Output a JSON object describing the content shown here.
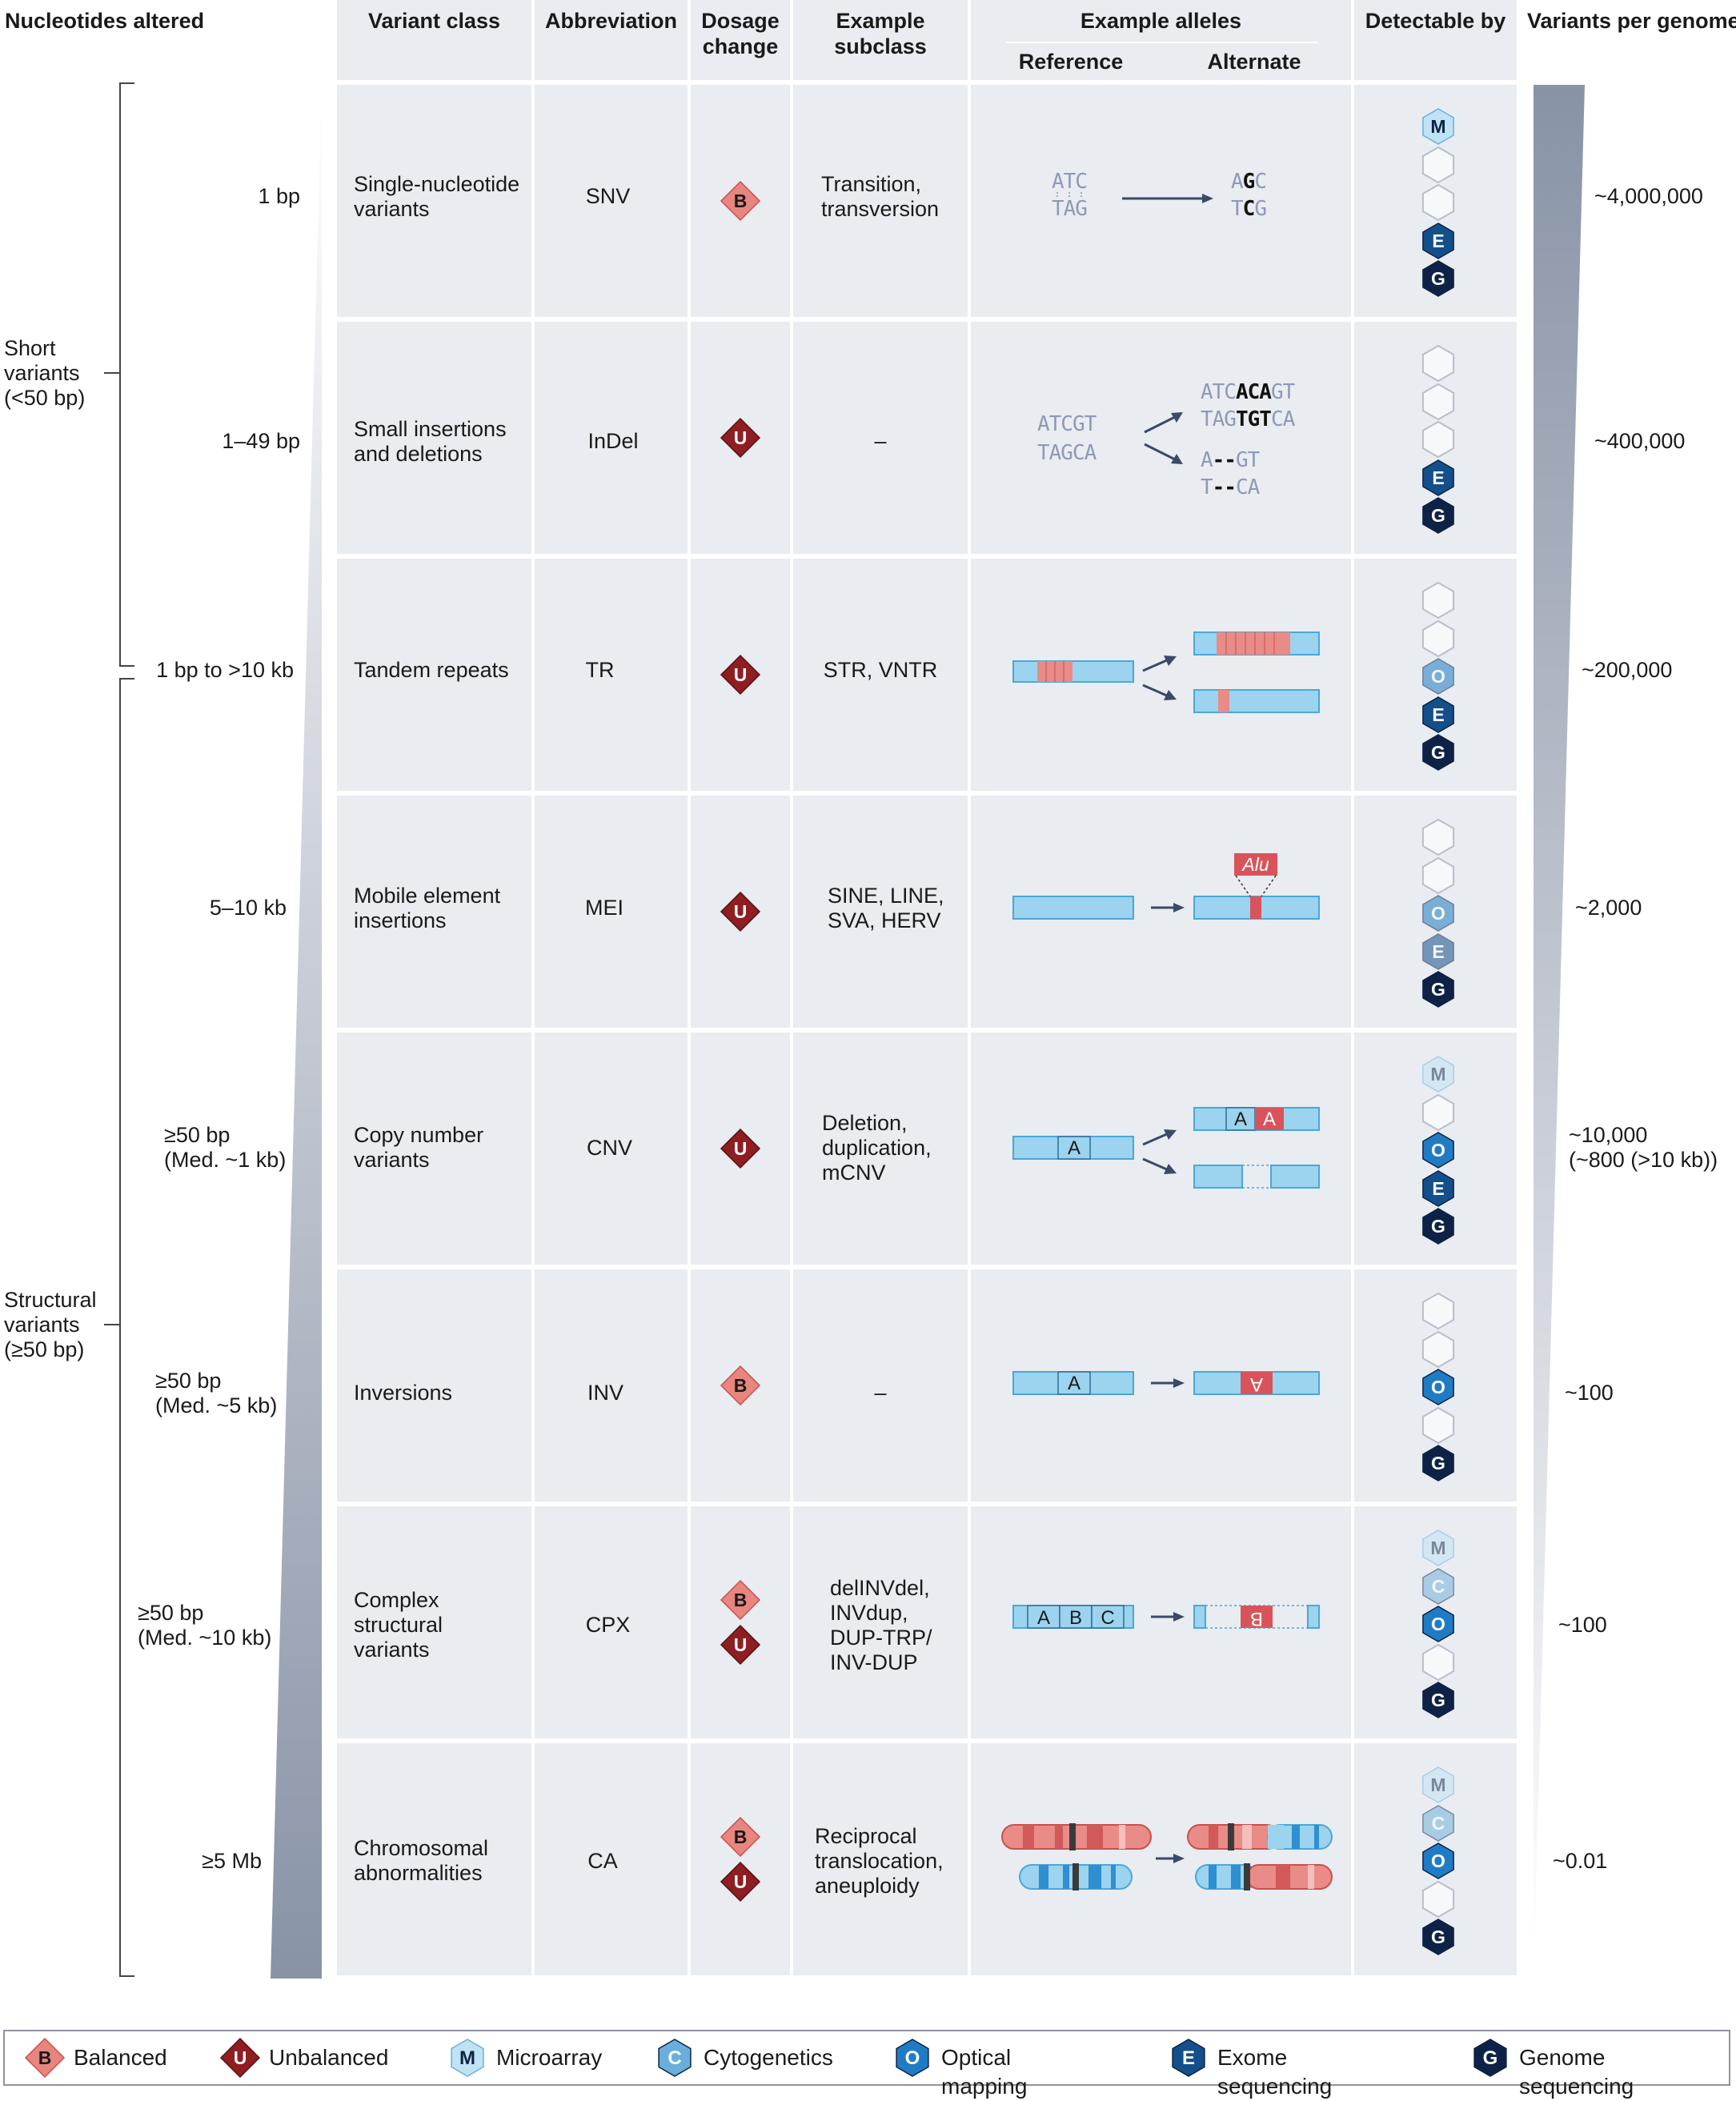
{
  "headers": {
    "nucleotides": "Nucleotides altered",
    "variant_class": "Variant class",
    "abbreviation": "Abbreviation",
    "dosage": "Dosage\nchange",
    "subclass": "Example\nsubclass",
    "alleles": "Example alleles",
    "reference": "Reference",
    "alternate": "Alternate",
    "detectable": "Detectable by",
    "per_genome": "Variants per genome"
  },
  "groups": {
    "short": "Short\nvariants\n(<50 bp)",
    "structural": "Structural\nvariants\n(≥50 bp)"
  },
  "rows": [
    {
      "size": "1 bp",
      "class": "Single-nucleotide\nvariants",
      "abbr": "SNV",
      "dosage": [
        "B"
      ],
      "subclass": "Transition,\ntransversion",
      "methods": [
        "M",
        "",
        "",
        "E",
        "G"
      ],
      "count": "~4,000,000"
    },
    {
      "size": "1–49 bp",
      "class": "Small insertions\nand deletions",
      "abbr": "InDel",
      "dosage": [
        "U"
      ],
      "subclass": "–",
      "methods": [
        "",
        "",
        "",
        "E",
        "G"
      ],
      "count": "~400,000"
    },
    {
      "size": "1 bp to >10 kb",
      "class": "Tandem repeats",
      "abbr": "TR",
      "dosage": [
        "U"
      ],
      "subclass": "STR, VNTR",
      "methods": [
        "",
        "",
        "O",
        "E",
        "G"
      ],
      "count": "~200,000"
    },
    {
      "size": "5–10 kb",
      "class": "Mobile element\ninsertions",
      "abbr": "MEI",
      "dosage": [
        "U"
      ],
      "subclass": "SINE, LINE,\nSVA, HERV",
      "methods": [
        "",
        "",
        "O",
        "E",
        "G"
      ],
      "count": "~2,000"
    },
    {
      "size": "≥50 bp\n(Med. ~1 kb)",
      "class": "Copy number\nvariants",
      "abbr": "CNV",
      "dosage": [
        "U"
      ],
      "subclass": "Deletion,\nduplication,\nmCNV",
      "methods": [
        "M",
        "",
        "O",
        "E",
        "G"
      ],
      "count": "~10,000\n(~800 (>10 kb))"
    },
    {
      "size": "≥50 bp\n(Med. ~5 kb)",
      "class": "Inversions",
      "abbr": "INV",
      "dosage": [
        "B"
      ],
      "subclass": "–",
      "methods": [
        "",
        "",
        "O",
        "",
        "G"
      ],
      "count": "~100"
    },
    {
      "size": "≥50 bp\n(Med. ~10 kb)",
      "class": "Complex\nstructural\nvariants",
      "abbr": "CPX",
      "dosage": [
        "B",
        "U"
      ],
      "subclass": "delINVdel,\nINVdup,\nDUP-TRP/\nINV-DUP",
      "methods": [
        "M",
        "C",
        "O",
        "",
        "G"
      ],
      "count": "~100"
    },
    {
      "size": "≥5 Mb",
      "class": "Chromosomal\nabnormalities",
      "abbr": "CA",
      "dosage": [
        "B",
        "U"
      ],
      "subclass": "Reciprocal\ntranslocation,\naneuploidy",
      "methods": [
        "M",
        "C",
        "O",
        "",
        "G"
      ],
      "count": "~0.01"
    }
  ],
  "alleles": {
    "snv_ref_top": "ATC",
    "snv_ref_bottom": "TAG",
    "snv_alt_top": [
      "A",
      "G",
      "C"
    ],
    "snv_alt_bottom": [
      "T",
      "C",
      "G"
    ],
    "indel_ref_top": "ATCGT",
    "indel_ref_bottom": "TAGCA",
    "indel_ins_top": [
      "ATC",
      "ACA",
      "GT"
    ],
    "indel_ins_bottom": [
      "TAG",
      "TGT",
      "CA"
    ],
    "indel_del_top": [
      "A",
      "--",
      "GT"
    ],
    "indel_del_bottom": [
      "T",
      "--",
      "CA"
    ],
    "alu_label": "Alu",
    "segment_a": "A",
    "segment_b": "B",
    "segment_c": "C"
  },
  "legend": [
    {
      "key": "B",
      "label": "Balanced"
    },
    {
      "key": "U",
      "label": "Unbalanced"
    },
    {
      "key": "M",
      "label": "Microarray"
    },
    {
      "key": "C",
      "label": "Cytogenetics"
    },
    {
      "key": "O",
      "label": "Optical mapping"
    },
    {
      "key": "E",
      "label": "Exome sequencing"
    },
    {
      "key": "G",
      "label": "Genome sequencing"
    }
  ],
  "colors": {
    "cell_bg": "#e9ecf1",
    "balanced": "#e8857f",
    "unbalanced": "#8e1e22",
    "microarray": "#bfe3f4",
    "cytogenetics": "#6aaedc",
    "optical": "#1f7cc4",
    "exome": "#134f8a",
    "genome": "#0d2246",
    "dna_blue": "#9cd3ee",
    "dna_red": "#e06a68"
  }
}
